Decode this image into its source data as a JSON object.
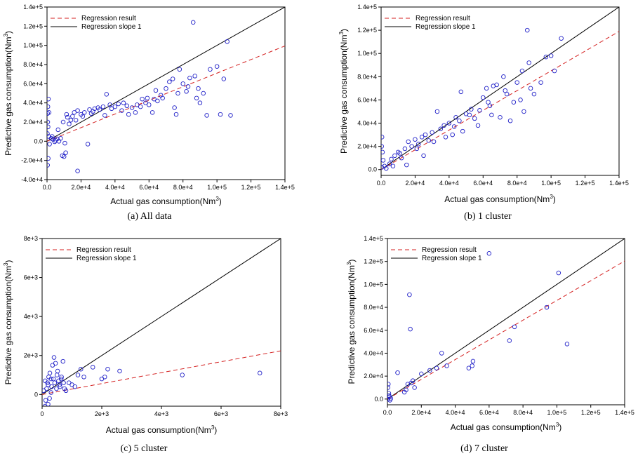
{
  "chart_data": [
    {
      "type": "scatter",
      "caption": "(a)  All data",
      "xlabel": "Actual gas consumption(Nm",
      "ylabel": "Predictive gas consumption(Nm",
      "unit_sup": "3",
      "unit_close": ")",
      "xlim": [
        0,
        140000
      ],
      "ylim": [
        -40000,
        140000
      ],
      "xticks": [
        0,
        20000,
        40000,
        60000,
        80000,
        100000,
        120000,
        140000
      ],
      "xtick_labels": [
        "0.0",
        "2.0e+4",
        "4.0e+4",
        "6.0e+4",
        "8.0e+4",
        "1.0e+5",
        "1.2e+5",
        "1.4e+5"
      ],
      "yticks": [
        -40000,
        -20000,
        0,
        20000,
        40000,
        60000,
        80000,
        100000,
        120000,
        140000
      ],
      "ytick_labels": [
        "-4.0e+4",
        "-2.0e+4",
        "0.0",
        "2.0e+4",
        "4.0e+4",
        "6.0e+4",
        "8.0e+4",
        "1.0e+5",
        "1.2e+5",
        "1.4e+5"
      ],
      "regression_slope": 0.71,
      "legend": [
        "Regression result",
        "Regression slope 1"
      ],
      "points": [
        [
          500,
          36000
        ],
        [
          300,
          29000
        ],
        [
          800,
          44000
        ],
        [
          1200,
          30000
        ],
        [
          400,
          20000
        ],
        [
          600,
          15000
        ],
        [
          200,
          8000
        ],
        [
          1000,
          5000
        ],
        [
          1500,
          -3000
        ],
        [
          700,
          -18000
        ],
        [
          300,
          -25000
        ],
        [
          2500,
          3000
        ],
        [
          3500,
          2000
        ],
        [
          4500,
          -500
        ],
        [
          3000,
          5000
        ],
        [
          5000,
          1000
        ],
        [
          6000,
          2500
        ],
        [
          7000,
          0
        ],
        [
          8000,
          3000
        ],
        [
          9000,
          -15000
        ],
        [
          10000,
          -16000
        ],
        [
          11000,
          -12000
        ],
        [
          10500,
          -2000
        ],
        [
          12000,
          25000
        ],
        [
          14000,
          22000
        ],
        [
          16000,
          30000
        ],
        [
          18000,
          32000
        ],
        [
          20000,
          28000
        ],
        [
          22000,
          30000
        ],
        [
          24000,
          -3000
        ],
        [
          25000,
          33000
        ],
        [
          28000,
          34000
        ],
        [
          30000,
          35000
        ],
        [
          33000,
          36000
        ],
        [
          35000,
          49000
        ],
        [
          37000,
          38000
        ],
        [
          40000,
          36000
        ],
        [
          42000,
          39000
        ],
        [
          45000,
          40000
        ],
        [
          48000,
          28000
        ],
        [
          50000,
          35000
        ],
        [
          52000,
          30000
        ],
        [
          55000,
          36000
        ],
        [
          58000,
          40000
        ],
        [
          60000,
          38000
        ],
        [
          63000,
          44000
        ],
        [
          65000,
          42000
        ],
        [
          67000,
          48000
        ],
        [
          70000,
          55000
        ],
        [
          72000,
          62000
        ],
        [
          74000,
          65000
        ],
        [
          75000,
          35000
        ],
        [
          76000,
          28000
        ],
        [
          78000,
          75000
        ],
        [
          80000,
          60000
        ],
        [
          82000,
          52000
        ],
        [
          84000,
          66000
        ],
        [
          86000,
          124000
        ],
        [
          87000,
          68000
        ],
        [
          89000,
          55000
        ],
        [
          90000,
          40000
        ],
        [
          92000,
          50000
        ],
        [
          94000,
          27000
        ],
        [
          96000,
          75000
        ],
        [
          100000,
          78000
        ],
        [
          102000,
          28000
        ],
        [
          104000,
          65000
        ],
        [
          106000,
          104000
        ],
        [
          108000,
          27000
        ],
        [
          18000,
          -31000
        ],
        [
          13000,
          18000
        ],
        [
          15000,
          26000
        ],
        [
          26000,
          29000
        ],
        [
          34000,
          27000
        ],
        [
          44000,
          32000
        ],
        [
          56000,
          44000
        ],
        [
          62000,
          30000
        ],
        [
          68000,
          45000
        ],
        [
          77000,
          50000
        ],
        [
          83000,
          57000
        ],
        [
          88000,
          45000
        ],
        [
          6500,
          12000
        ],
        [
          9500,
          20000
        ],
        [
          11500,
          28000
        ],
        [
          17000,
          22000
        ],
        [
          21000,
          26000
        ],
        [
          27000,
          31000
        ],
        [
          31000,
          33000
        ],
        [
          38000,
          34000
        ],
        [
          47000,
          37000
        ],
        [
          53000,
          38000
        ],
        [
          59000,
          45000
        ],
        [
          64000,
          53000
        ]
      ]
    },
    {
      "type": "scatter",
      "caption": "(b)  1  cluster",
      "xlabel": "Actual gas consumption(Nm",
      "ylabel": "Predictive gas consumption(Nm",
      "unit_sup": "3",
      "unit_close": ")",
      "xlim": [
        0,
        140000
      ],
      "ylim": [
        -5000,
        140000
      ],
      "xticks": [
        0,
        20000,
        40000,
        60000,
        80000,
        100000,
        120000,
        140000
      ],
      "xtick_labels": [
        "0.0",
        "2.0e+4",
        "4.0e+4",
        "6.0e+4",
        "8.0e+4",
        "1.0e+5",
        "1.2e+5",
        "1.4e+5"
      ],
      "yticks": [
        0,
        20000,
        40000,
        60000,
        80000,
        100000,
        120000,
        140000
      ],
      "ytick_labels": [
        "0.0",
        "2.0e+4",
        "4.0e+4",
        "6.0e+4",
        "8.0e+4",
        "1.0e+5",
        "1.2e+5",
        "1.4e+5"
      ],
      "regression_slope": 0.85,
      "legend": [
        "Regression result",
        "Regression slope 1"
      ],
      "points": [
        [
          500,
          28000
        ],
        [
          300,
          20000
        ],
        [
          800,
          15000
        ],
        [
          1200,
          8000
        ],
        [
          400,
          2000
        ],
        [
          2000,
          3000
        ],
        [
          3000,
          1000
        ],
        [
          5000,
          5000
        ],
        [
          7000,
          3000
        ],
        [
          8000,
          12000
        ],
        [
          10000,
          15000
        ],
        [
          12000,
          10000
        ],
        [
          14000,
          18000
        ],
        [
          16000,
          24000
        ],
        [
          18000,
          20000
        ],
        [
          20000,
          26000
        ],
        [
          22000,
          22000
        ],
        [
          24000,
          28000
        ],
        [
          26000,
          30000
        ],
        [
          28000,
          25000
        ],
        [
          30000,
          32000
        ],
        [
          33000,
          50000
        ],
        [
          35000,
          35000
        ],
        [
          37000,
          38000
        ],
        [
          40000,
          40000
        ],
        [
          42000,
          30000
        ],
        [
          44000,
          45000
        ],
        [
          46000,
          42000
        ],
        [
          47000,
          67000
        ],
        [
          50000,
          48000
        ],
        [
          52000,
          47000
        ],
        [
          55000,
          44000
        ],
        [
          57000,
          38000
        ],
        [
          60000,
          62000
        ],
        [
          62000,
          70000
        ],
        [
          64000,
          55000
        ],
        [
          66000,
          72000
        ],
        [
          68000,
          73000
        ],
        [
          70000,
          45000
        ],
        [
          72000,
          80000
        ],
        [
          74000,
          65000
        ],
        [
          76000,
          42000
        ],
        [
          78000,
          58000
        ],
        [
          80000,
          75000
        ],
        [
          82000,
          60000
        ],
        [
          84000,
          50000
        ],
        [
          86000,
          120000
        ],
        [
          87000,
          92000
        ],
        [
          88000,
          70000
        ],
        [
          90000,
          65000
        ],
        [
          94000,
          75000
        ],
        [
          97000,
          97000
        ],
        [
          100000,
          98000
        ],
        [
          102000,
          85000
        ],
        [
          106000,
          113000
        ],
        [
          15000,
          4000
        ],
        [
          25000,
          12000
        ],
        [
          38000,
          28000
        ],
        [
          48000,
          33000
        ],
        [
          58000,
          51000
        ],
        [
          65000,
          47000
        ],
        [
          73000,
          68000
        ],
        [
          83000,
          85000
        ],
        [
          6000,
          9000
        ],
        [
          11000,
          14000
        ],
        [
          21000,
          18000
        ],
        [
          31000,
          24000
        ],
        [
          43000,
          37000
        ],
        [
          53000,
          52000
        ],
        [
          63000,
          58000
        ]
      ]
    },
    {
      "type": "scatter",
      "caption": "(c)  5  cluster",
      "xlabel": "Actual gas consumption(Nm",
      "ylabel": "Predictive gas consumption(Nm",
      "unit_sup": "3",
      "unit_close": ")",
      "xlim": [
        0,
        8000
      ],
      "ylim": [
        -600,
        8000
      ],
      "xticks": [
        0,
        2000,
        4000,
        6000,
        8000
      ],
      "xtick_labels": [
        "0",
        "2e+3",
        "4e+3",
        "6e+3",
        "8e+3"
      ],
      "yticks": [
        0,
        2000,
        4000,
        6000,
        8000
      ],
      "ytick_labels": [
        "0",
        "2e+3",
        "4e+3",
        "6e+3",
        "8e+3"
      ],
      "regression_slope": 0.28,
      "legend": [
        "Regression result",
        "Regression slope 1"
      ],
      "points": [
        [
          100,
          700
        ],
        [
          200,
          500
        ],
        [
          150,
          300
        ],
        [
          300,
          800
        ],
        [
          250,
          -200
        ],
        [
          400,
          1900
        ],
        [
          450,
          1600
        ],
        [
          500,
          1000
        ],
        [
          550,
          700
        ],
        [
          600,
          400
        ],
        [
          650,
          900
        ],
        [
          700,
          1700
        ],
        [
          750,
          300
        ],
        [
          800,
          200
        ],
        [
          900,
          600
        ],
        [
          1000,
          500
        ],
        [
          1100,
          400
        ],
        [
          1200,
          1000
        ],
        [
          1300,
          1300
        ],
        [
          1400,
          900
        ],
        [
          1700,
          1400
        ],
        [
          2000,
          800
        ],
        [
          2100,
          900
        ],
        [
          2200,
          1300
        ],
        [
          2600,
          1200
        ],
        [
          4700,
          1000
        ],
        [
          7300,
          1100
        ],
        [
          350,
          1500
        ],
        [
          100,
          -600
        ],
        [
          200,
          -500
        ],
        [
          300,
          100
        ],
        [
          50,
          200
        ],
        [
          120,
          -300
        ],
        [
          180,
          600
        ],
        [
          220,
          900
        ],
        [
          260,
          1100
        ],
        [
          320,
          400
        ],
        [
          380,
          800
        ],
        [
          420,
          600
        ],
        [
          480,
          300
        ],
        [
          520,
          1200
        ],
        [
          580,
          500
        ],
        [
          640,
          800
        ],
        [
          720,
          600
        ]
      ]
    },
    {
      "type": "scatter",
      "caption": "(d)  7  cluster",
      "xlabel": "Actual gas consumption(Nm",
      "ylabel": "Predictive gas consumption(Nm",
      "unit_sup": "3",
      "unit_close": ")",
      "xlim": [
        0,
        140000
      ],
      "ylim": [
        -5000,
        140000
      ],
      "xticks": [
        0,
        20000,
        40000,
        60000,
        80000,
        100000,
        120000,
        140000
      ],
      "xtick_labels": [
        "0.0",
        "2.0e+4",
        "4.0e+4",
        "6.0e+4",
        "8.0e+4",
        "1.0e+5",
        "1.2e+5",
        "1.4e+5"
      ],
      "yticks": [
        0,
        20000,
        40000,
        60000,
        80000,
        100000,
        120000,
        140000
      ],
      "ytick_labels": [
        "0.0",
        "2.0e+4",
        "4.0e+4",
        "6.0e+4",
        "8.0e+4",
        "1.0e+5",
        "1.2e+5",
        "1.4e+5"
      ],
      "regression_slope": 0.86,
      "legend": [
        "Regression result",
        "Regression slope 1"
      ],
      "points": [
        [
          500,
          13000
        ],
        [
          300,
          10000
        ],
        [
          800,
          5000
        ],
        [
          1200,
          2000
        ],
        [
          400,
          0
        ],
        [
          1500,
          -1000
        ],
        [
          2000,
          500
        ],
        [
          1000,
          3000
        ],
        [
          6000,
          23000
        ],
        [
          10000,
          6000
        ],
        [
          12000,
          13000
        ],
        [
          13000,
          91000
        ],
        [
          13500,
          61000
        ],
        [
          14000,
          14000
        ],
        [
          15000,
          16000
        ],
        [
          20000,
          22000
        ],
        [
          25000,
          25000
        ],
        [
          29000,
          27000
        ],
        [
          32000,
          40000
        ],
        [
          35000,
          29000
        ],
        [
          48000,
          27000
        ],
        [
          50000,
          29000
        ],
        [
          50500,
          33000
        ],
        [
          60000,
          127000
        ],
        [
          72000,
          51000
        ],
        [
          75000,
          63000
        ],
        [
          94000,
          80000
        ],
        [
          101000,
          110000
        ],
        [
          106000,
          48000
        ],
        [
          16000,
          10000
        ],
        [
          11000,
          8000
        ]
      ]
    }
  ],
  "colors": {
    "points": "#2020c8",
    "regression": "#d42020",
    "identity": "#000000"
  }
}
